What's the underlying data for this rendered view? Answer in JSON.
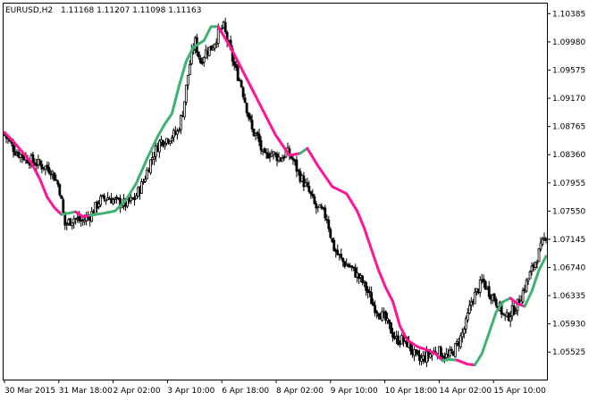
{
  "header": {
    "symbol": "EURUSD,H2",
    "ohlc": "1.11168 1.11207 1.11098 1.11163"
  },
  "chart_data": {
    "type": "candlestick",
    "symbol": "EURUSD",
    "timeframe": "H2",
    "y_ticks": [
      "1.10385",
      "1.09980",
      "1.09575",
      "1.09170",
      "1.08765",
      "1.08360",
      "1.07955",
      "1.07550",
      "1.07145",
      "1.06740",
      "1.06335",
      "1.05930",
      "1.05525"
    ],
    "x_ticks": [
      "30 Mar 2015",
      "31 Mar 18:00",
      "2 Apr 02:00",
      "3 Apr 10:00",
      "6 Apr 18:00",
      "8 Apr 02:00",
      "9 Apr 10:00",
      "10 Apr 18:00",
      "14 Apr 02:00",
      "15 Apr 10:00"
    ],
    "ylim": [
      1.0513,
      1.1053
    ],
    "colors": {
      "rising": "#3cb371",
      "falling": "#ff1493",
      "candle": "#000000",
      "frame": "#000000"
    },
    "close_path": [
      [
        0,
        1.0865
      ],
      [
        4,
        1.084
      ],
      [
        8,
        1.083
      ],
      [
        12,
        1.0822
      ],
      [
        16,
        1.0815
      ],
      [
        19,
        1.079
      ],
      [
        21,
        1.0735
      ],
      [
        24,
        1.0745
      ],
      [
        27,
        1.074
      ],
      [
        30,
        1.075
      ],
      [
        33,
        1.077
      ],
      [
        36,
        1.0775
      ],
      [
        39,
        1.0768
      ],
      [
        42,
        1.0765
      ],
      [
        45,
        1.0772
      ],
      [
        48,
        1.0795
      ],
      [
        51,
        1.083
      ],
      [
        54,
        1.0855
      ],
      [
        57,
        1.086
      ],
      [
        60,
        1.0868
      ],
      [
        62,
        1.09
      ],
      [
        64,
        1.096
      ],
      [
        66,
        1.1
      ],
      [
        68,
        1.097
      ],
      [
        70,
        1.0985
      ],
      [
        72,
        1.099
      ],
      [
        74,
        1.1008
      ],
      [
        76,
        1.102
      ],
      [
        78,
        1.099
      ],
      [
        80,
        1.096
      ],
      [
        82,
        1.094
      ],
      [
        84,
        1.0905
      ],
      [
        86,
        1.087
      ],
      [
        88,
        1.086
      ],
      [
        90,
        1.083
      ],
      [
        92,
        1.084
      ],
      [
        94,
        1.0835
      ],
      [
        96,
        1.083
      ],
      [
        98,
        1.084
      ],
      [
        100,
        1.083
      ],
      [
        102,
        1.081
      ],
      [
        104,
        1.0795
      ],
      [
        106,
        1.078
      ],
      [
        108,
        1.076
      ],
      [
        110,
        1.0755
      ],
      [
        112,
        1.0745
      ],
      [
        114,
        1.0705
      ],
      [
        116,
        1.069
      ],
      [
        118,
        1.068
      ],
      [
        120,
        1.0675
      ],
      [
        122,
        1.0665
      ],
      [
        124,
        1.0655
      ],
      [
        126,
        1.064
      ],
      [
        128,
        1.062
      ],
      [
        130,
        1.061
      ],
      [
        132,
        1.06
      ],
      [
        134,
        1.0585
      ],
      [
        136,
        1.057
      ],
      [
        138,
        1.057
      ],
      [
        140,
        1.0565
      ],
      [
        142,
        1.055
      ],
      [
        144,
        1.054
      ],
      [
        146,
        1.0545
      ],
      [
        148,
        1.055
      ],
      [
        150,
        1.0555
      ],
      [
        152,
        1.055
      ],
      [
        154,
        1.0545
      ],
      [
        156,
        1.0555
      ],
      [
        158,
        1.057
      ],
      [
        160,
        1.059
      ],
      [
        162,
        1.0625
      ],
      [
        164,
        1.064
      ],
      [
        166,
        1.0655
      ],
      [
        168,
        1.064
      ],
      [
        170,
        1.063
      ],
      [
        172,
        1.0615
      ],
      [
        174,
        1.06
      ],
      [
        176,
        1.061
      ],
      [
        178,
        1.062
      ],
      [
        180,
        1.064
      ],
      [
        182,
        1.066
      ],
      [
        184,
        1.068
      ],
      [
        186,
        1.07
      ],
      [
        188,
        1.072
      ]
    ],
    "ma_segments": [
      {
        "trend": "falling",
        "points": [
          [
            0,
            1.0868
          ],
          [
            5,
            1.0855
          ],
          [
            10,
            1.084
          ],
          [
            15,
            1.0825
          ],
          [
            20,
            1.08
          ],
          [
            24,
            1.0775
          ],
          [
            28,
            1.076
          ],
          [
            32,
            1.075
          ]
        ]
      },
      {
        "trend": "rising",
        "points": [
          [
            32,
            1.075
          ],
          [
            36,
            1.0752
          ],
          [
            40,
            1.0754
          ]
        ]
      },
      {
        "trend": "falling",
        "points": [
          [
            40,
            1.0754
          ],
          [
            44,
            1.0747
          ],
          [
            48,
            1.0749
          ]
        ]
      },
      {
        "trend": "rising",
        "points": [
          [
            48,
            1.0749
          ],
          [
            56,
            1.0752
          ],
          [
            62,
            1.0755
          ],
          [
            68,
            1.077
          ],
          [
            74,
            1.0795
          ],
          [
            80,
            1.083
          ],
          [
            86,
            1.0862
          ],
          [
            90,
            1.088
          ],
          [
            94,
            1.0895
          ],
          [
            98,
            1.0935
          ],
          [
            102,
            1.097
          ],
          [
            106,
            1.099
          ],
          [
            112,
            1.1
          ],
          [
            116,
            1.102
          ],
          [
            120,
            1.102
          ]
        ]
      },
      {
        "trend": "falling",
        "points": [
          [
            120,
            1.102
          ],
          [
            128,
            1.0985
          ],
          [
            136,
            1.0945
          ],
          [
            144,
            1.0905
          ],
          [
            152,
            1.0865
          ],
          [
            160,
            1.0835
          ],
          [
            166,
            1.0838
          ]
        ]
      },
      {
        "trend": "rising",
        "points": [
          [
            166,
            1.0838
          ],
          [
            170,
            1.0845
          ]
        ]
      },
      {
        "trend": "falling",
        "points": [
          [
            170,
            1.0845
          ],
          [
            176,
            1.082
          ],
          [
            184,
            1.079
          ],
          [
            192,
            1.078
          ],
          [
            198,
            1.0755
          ],
          [
            202,
            1.073
          ],
          [
            206,
            1.07
          ],
          [
            210,
            1.067
          ],
          [
            214,
            1.0645
          ],
          [
            218,
            1.0625
          ],
          [
            222,
            1.059
          ],
          [
            226,
            1.057
          ],
          [
            232,
            1.056
          ],
          [
            238,
            1.0555
          ],
          [
            242,
            1.055
          ],
          [
            246,
            1.054
          ]
        ]
      },
      {
        "trend": "rising",
        "points": [
          [
            246,
            1.054
          ],
          [
            250,
            1.0542
          ],
          [
            254,
            1.0541
          ]
        ]
      },
      {
        "trend": "falling",
        "points": [
          [
            254,
            1.0541
          ],
          [
            260,
            1.0535
          ],
          [
            264,
            1.0534
          ]
        ]
      },
      {
        "trend": "rising",
        "points": [
          [
            264,
            1.0534
          ],
          [
            268,
            1.055
          ],
          [
            272,
            1.058
          ],
          [
            276,
            1.061
          ],
          [
            280,
            1.0625
          ],
          [
            284,
            1.063
          ]
        ]
      },
      {
        "trend": "falling",
        "points": [
          [
            284,
            1.063
          ],
          [
            288,
            1.0622
          ],
          [
            292,
            1.0618
          ]
        ]
      },
      {
        "trend": "rising",
        "points": [
          [
            292,
            1.0618
          ],
          [
            296,
            1.064
          ],
          [
            300,
            1.067
          ],
          [
            304,
            1.069
          ]
        ]
      }
    ],
    "n_bars": 305
  }
}
